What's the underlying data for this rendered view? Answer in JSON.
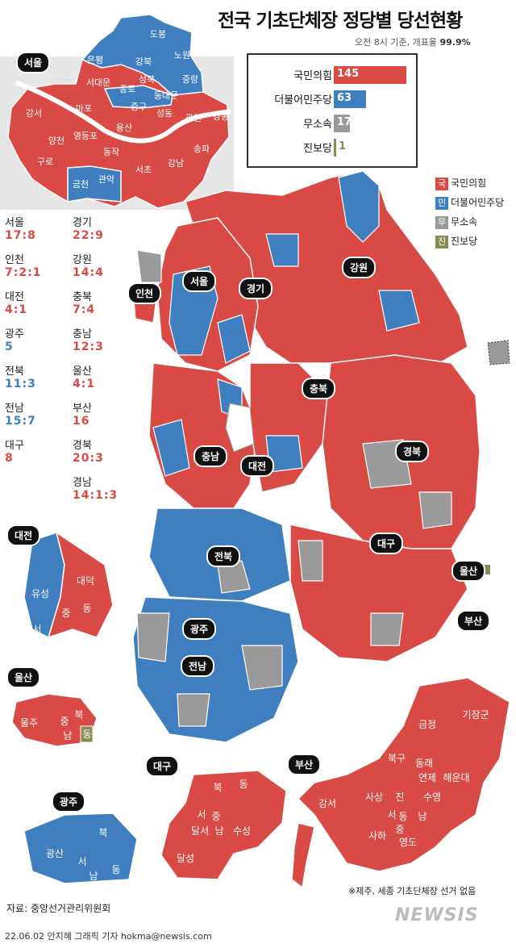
{
  "title": "전국 기초단체장 정당별 당선현황",
  "subtitle": {
    "prefix": "오전 8시 기준, 개표율",
    "rate": "99.9%"
  },
  "colors": {
    "ppp": "#d94a44",
    "dpk": "#3f7fbf",
    "ind": "#9a9a9a",
    "prog": "#8a8a55"
  },
  "results": [
    {
      "party": "국민의힘",
      "seats": 145
    },
    {
      "party": "더불어민주당",
      "seats": 63
    },
    {
      "party": "무소속",
      "seats": 17
    },
    {
      "party": "진보당",
      "seats": 1
    }
  ],
  "legend": [
    {
      "mark": "국",
      "label": "국민의힘"
    },
    {
      "mark": "민",
      "label": "더불어민주당"
    },
    {
      "mark": "무",
      "label": "무소속"
    },
    {
      "mark": "진",
      "label": "진보당"
    }
  ],
  "tally": [
    {
      "region": "서울",
      "score": "17:8"
    },
    {
      "region": "경기",
      "score": "22:9"
    },
    {
      "region": "인천",
      "score": "7:2:1"
    },
    {
      "region": "강원",
      "score": "14:4"
    },
    {
      "region": "대전",
      "score": "4:1"
    },
    {
      "region": "충북",
      "score": "7:4"
    },
    {
      "region": "광주",
      "score": "5"
    },
    {
      "region": "충남",
      "score": "12:3"
    },
    {
      "region": "전북",
      "score": "11:3"
    },
    {
      "region": "울산",
      "score": "4:1"
    },
    {
      "region": "전남",
      "score": "15:7"
    },
    {
      "region": "부산",
      "score": "16"
    },
    {
      "region": "대구",
      "score": "8"
    },
    {
      "region": "경북",
      "score": "20:3"
    },
    {
      "region": "경남",
      "score": "14:1:3"
    }
  ],
  "map_badges": {
    "seoul": "서울",
    "incheon": "인천",
    "gyeonggi": "경기",
    "gangwon": "강원",
    "chungbuk": "충북",
    "chungnam": "충남",
    "daejeon": "대전",
    "gyeongbuk": "경북",
    "jeonbuk": "전북",
    "daegu": "대구",
    "ulsan": "울산",
    "gwangju": "광주",
    "jeonnam": "전남",
    "busan": "부산"
  },
  "seoul_districts": [
    "도봉",
    "노원",
    "은평",
    "강북",
    "성북",
    "중랑",
    "서대문",
    "종로",
    "동대문",
    "강서",
    "마포",
    "중구",
    "성동",
    "광진",
    "강동",
    "양천",
    "영등포",
    "용산",
    "송파",
    "구로",
    "동작",
    "서초",
    "강남",
    "금천",
    "관악"
  ],
  "daejeon_districts": [
    "유성",
    "대덕",
    "중",
    "동",
    "서"
  ],
  "ulsan_districts": [
    "울주",
    "중",
    "북",
    "남",
    "동"
  ],
  "gwangju_districts": [
    "광산",
    "북",
    "서",
    "남",
    "동"
  ],
  "daegu_districts": [
    "북",
    "동",
    "서",
    "중",
    "달서",
    "남",
    "수성",
    "달성"
  ],
  "busan_districts": [
    "기장군",
    "금정",
    "북구",
    "동래",
    "해운대",
    "연제",
    "강서",
    "사상",
    "진",
    "수영",
    "서",
    "동",
    "남",
    "사하",
    "중",
    "영도"
  ],
  "footnote": "※제주, 세종 기초단체장 선거 없음",
  "source": "자료: 중앙선거관리위원회",
  "credit": "22.06.02 안지혜 그래픽 기자 hokma@newsis.com",
  "logo": "NEWSIS"
}
